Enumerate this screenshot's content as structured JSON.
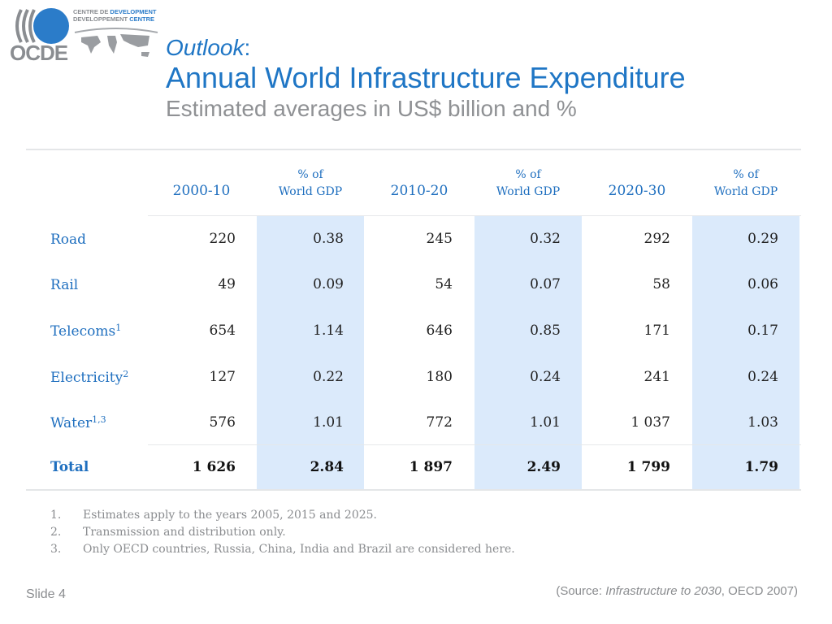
{
  "logo": {
    "wordmark": "OCDE",
    "line1a": "CENTRE DE ",
    "line1b": "DEVELOPMENT",
    "line2a": "DEVELOPPEMENT ",
    "line2b": "CENTRE",
    "brand_color": "#2b7cc9"
  },
  "title": {
    "prefix": "Outlook",
    "colon": ":",
    "main": "Annual World Infrastructure Expenditure",
    "subtitle": "Estimated averages in US$ billion and %"
  },
  "table": {
    "columns": [
      {
        "label": "2000-10",
        "type": "year"
      },
      {
        "label_1": "% of",
        "label_2": "World GDP",
        "type": "pct"
      },
      {
        "label": "2010-20",
        "type": "year"
      },
      {
        "label_1": "% of",
        "label_2": "World GDP",
        "type": "pct"
      },
      {
        "label": "2020-30",
        "type": "year"
      },
      {
        "label_1": "% of",
        "label_2": "World GDP",
        "type": "pct"
      }
    ],
    "rows": [
      {
        "label": "Road",
        "sup": "",
        "values": [
          "220",
          "0.38",
          "245",
          "0.32",
          "292",
          "0.29"
        ]
      },
      {
        "label": "Rail",
        "sup": "",
        "values": [
          "49",
          "0.09",
          "54",
          "0.07",
          "58",
          "0.06"
        ]
      },
      {
        "label": "Telecoms",
        "sup": "1",
        "values": [
          "654",
          "1.14",
          "646",
          "0.85",
          "171",
          "0.17"
        ]
      },
      {
        "label": "Electricity",
        "sup": "2",
        "values": [
          "127",
          "0.22",
          "180",
          "0.24",
          "241",
          "0.24"
        ]
      },
      {
        "label": "Water",
        "sup": "1,3",
        "values": [
          "576",
          "1.01",
          "772",
          "1.01",
          "1 037",
          "1.03"
        ]
      }
    ],
    "total": {
      "label": "Total",
      "values": [
        "1 626",
        "2.84",
        "1 897",
        "2.49",
        "1 799",
        "1.79"
      ]
    },
    "highlight_color": "#dbeafb"
  },
  "notes": [
    {
      "n": "1.",
      "text": "Estimates apply to the years 2005, 2015 and 2025."
    },
    {
      "n": "2.",
      "text": "Transmission and distribution only."
    },
    {
      "n": "3.",
      "text": "Only OECD countries, Russia, China, India and Brazil are considered here."
    }
  ],
  "footer": {
    "slide": "Slide 4",
    "source_prefix": "(Source: ",
    "source_title": "Infrastructure to 2030",
    "source_suffix": ", OECD 2007)"
  }
}
